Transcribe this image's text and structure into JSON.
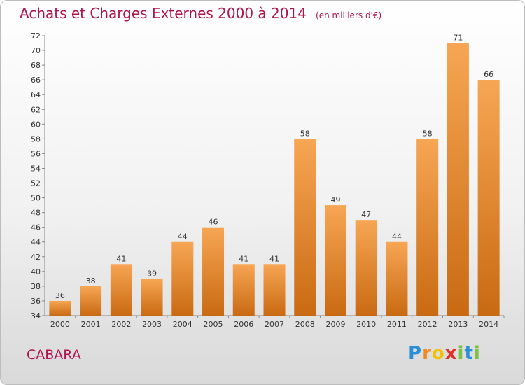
{
  "chart_data": {
    "type": "bar",
    "title": "Achats et Charges Externes 2000 à 2014",
    "subtitle": "(en milliers d'€)",
    "categories": [
      "2000",
      "2001",
      "2002",
      "2003",
      "2004",
      "2005",
      "2006",
      "2007",
      "2008",
      "2009",
      "2010",
      "2011",
      "2012",
      "2013",
      "2014"
    ],
    "values": [
      36,
      38,
      41,
      39,
      44,
      46,
      41,
      41,
      58,
      49,
      47,
      44,
      58,
      71,
      66
    ],
    "ylim": [
      34,
      72
    ],
    "ytick_step": 2,
    "yticks": [
      "34",
      "36",
      "38",
      "40",
      "42",
      "44",
      "46",
      "48",
      "50",
      "52",
      "54",
      "56",
      "58",
      "60",
      "62",
      "64",
      "66",
      "68",
      "70",
      "72"
    ],
    "data_labels": [
      "36",
      "38",
      "41",
      "39",
      "44",
      "46",
      "41",
      "41",
      "58",
      "49",
      "47",
      "44",
      "58",
      "71",
      "66"
    ],
    "grid": false,
    "legend": "none",
    "bar_color_light": "#f7a654",
    "bar_color_dark": "#c96a12"
  },
  "commune": "CABARA",
  "logo": {
    "letters": [
      "P",
      "r",
      "o",
      "x",
      "i",
      "t",
      "i"
    ],
    "colors": [
      "#2a8fd6",
      "#f08a1c",
      "#f2c200",
      "#e0302a",
      "#7cc242",
      "#2a8fd6",
      "#7cc242"
    ]
  }
}
